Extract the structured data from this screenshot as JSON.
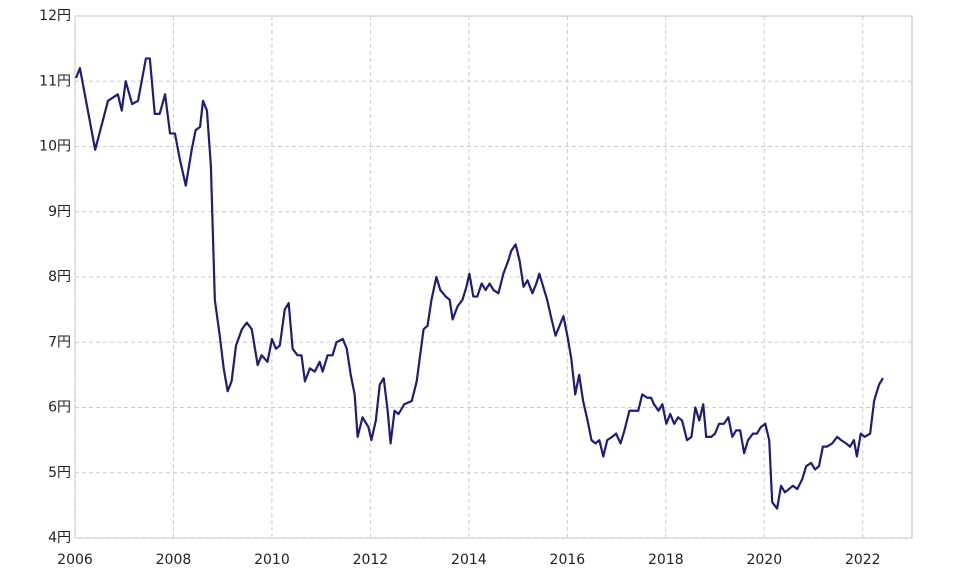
{
  "chart_data": {
    "type": "line",
    "x": [
      2006.02,
      2006.1,
      2006.41,
      2006.67,
      2006.87,
      2006.95,
      2007.03,
      2007.16,
      2007.28,
      2007.44,
      2007.52,
      2007.62,
      2007.72,
      2007.83,
      2007.93,
      2008.03,
      2008.13,
      2008.25,
      2008.37,
      2008.45,
      2008.54,
      2008.6,
      2008.68,
      2008.76,
      2008.84,
      2008.94,
      2009.02,
      2009.1,
      2009.18,
      2009.27,
      2009.39,
      2009.49,
      2009.59,
      2009.71,
      2009.79,
      2009.91,
      2010.0,
      2010.08,
      2010.16,
      2010.26,
      2010.34,
      2010.42,
      2010.52,
      2010.6,
      2010.67,
      2010.77,
      2010.87,
      2010.97,
      2011.03,
      2011.13,
      2011.23,
      2011.31,
      2011.44,
      2011.52,
      2011.6,
      2011.68,
      2011.74,
      2011.84,
      2011.96,
      2012.02,
      2012.11,
      2012.19,
      2012.27,
      2012.35,
      2012.41,
      2012.49,
      2012.57,
      2012.69,
      2012.84,
      2012.94,
      2013.08,
      2013.16,
      2013.24,
      2013.34,
      2013.42,
      2013.53,
      2013.61,
      2013.67,
      2013.77,
      2013.87,
      2013.95,
      2014.01,
      2014.09,
      2014.17,
      2014.26,
      2014.34,
      2014.42,
      2014.5,
      2014.6,
      2014.7,
      2014.8,
      2014.86,
      2014.95,
      2015.03,
      2015.11,
      2015.19,
      2015.29,
      2015.37,
      2015.43,
      2015.53,
      2015.59,
      2015.68,
      2015.76,
      2015.84,
      2015.92,
      2016.0,
      2016.08,
      2016.16,
      2016.24,
      2016.32,
      2016.41,
      2016.49,
      2016.57,
      2016.65,
      2016.73,
      2016.81,
      2016.91,
      2016.99,
      2017.08,
      2017.16,
      2017.26,
      2017.36,
      2017.44,
      2017.52,
      2017.62,
      2017.7,
      2017.76,
      2017.85,
      2017.93,
      2018.01,
      2018.09,
      2018.17,
      2018.25,
      2018.33,
      2018.43,
      2018.52,
      2018.6,
      2018.68,
      2018.76,
      2018.82,
      2018.92,
      2019.0,
      2019.08,
      2019.18,
      2019.27,
      2019.35,
      2019.43,
      2019.51,
      2019.59,
      2019.67,
      2019.77,
      2019.85,
      2019.93,
      2020.02,
      2020.1,
      2020.16,
      2020.26,
      2020.34,
      2020.42,
      2020.5,
      2020.58,
      2020.67,
      2020.77,
      2020.85,
      2020.95,
      2021.03,
      2021.11,
      2021.19,
      2021.27,
      2021.38,
      2021.48,
      2021.56,
      2021.66,
      2021.74,
      2021.82,
      2021.88,
      2021.96,
      2022.04,
      2022.15,
      2022.23,
      2022.33,
      2022.41
    ],
    "values": [
      11.05,
      11.2,
      9.95,
      10.7,
      10.8,
      10.55,
      11.0,
      10.65,
      10.7,
      11.35,
      11.35,
      10.5,
      10.5,
      10.8,
      10.2,
      10.2,
      9.8,
      9.4,
      9.95,
      10.25,
      10.3,
      10.7,
      10.55,
      9.7,
      7.65,
      7.1,
      6.6,
      6.25,
      6.4,
      6.95,
      7.2,
      7.3,
      7.2,
      6.65,
      6.8,
      6.7,
      7.05,
      6.9,
      6.95,
      7.5,
      7.6,
      6.9,
      6.8,
      6.8,
      6.4,
      6.6,
      6.55,
      6.7,
      6.55,
      6.8,
      6.8,
      7.0,
      7.05,
      6.9,
      6.5,
      6.2,
      5.55,
      5.85,
      5.7,
      5.5,
      5.8,
      6.35,
      6.45,
      5.95,
      5.45,
      5.95,
      5.9,
      6.05,
      6.1,
      6.4,
      7.2,
      7.25,
      7.65,
      8.0,
      7.8,
      7.7,
      7.65,
      7.35,
      7.55,
      7.65,
      7.85,
      8.05,
      7.7,
      7.7,
      7.9,
      7.8,
      7.9,
      7.8,
      7.75,
      8.05,
      8.25,
      8.4,
      8.5,
      8.25,
      7.85,
      7.95,
      7.75,
      7.9,
      8.05,
      7.8,
      7.65,
      7.35,
      7.1,
      7.25,
      7.4,
      7.1,
      6.75,
      6.2,
      6.5,
      6.1,
      5.8,
      5.5,
      5.45,
      5.5,
      5.25,
      5.5,
      5.55,
      5.6,
      5.45,
      5.65,
      5.95,
      5.95,
      5.95,
      6.2,
      6.15,
      6.15,
      6.05,
      5.95,
      6.05,
      5.75,
      5.9,
      5.75,
      5.85,
      5.8,
      5.5,
      5.55,
      6.0,
      5.8,
      6.05,
      5.55,
      5.55,
      5.6,
      5.75,
      5.75,
      5.85,
      5.55,
      5.65,
      5.65,
      5.3,
      5.5,
      5.6,
      5.6,
      5.7,
      5.75,
      5.5,
      4.55,
      4.45,
      4.8,
      4.7,
      4.75,
      4.8,
      4.75,
      4.9,
      5.1,
      5.15,
      5.05,
      5.1,
      5.4,
      5.4,
      5.45,
      5.55,
      5.5,
      5.45,
      5.4,
      5.5,
      5.25,
      5.6,
      5.55,
      5.6,
      6.1,
      6.35,
      6.45
    ],
    "color": "#1c1c7c",
    "xlim": [
      2006,
      2023
    ],
    "xticks": [
      2006,
      2008,
      2010,
      2012,
      2014,
      2016,
      2018,
      2020,
      2022
    ],
    "ylim": [
      4,
      12
    ],
    "yticks": [
      {
        "value": 4,
        "label": "4円"
      },
      {
        "value": 5,
        "label": "5円"
      },
      {
        "value": 6,
        "label": "6円"
      },
      {
        "value": 7,
        "label": "7円"
      },
      {
        "value": 8,
        "label": "8円"
      },
      {
        "value": 9,
        "label": "9円"
      },
      {
        "value": 10,
        "label": "10円"
      },
      {
        "value": 11,
        "label": "11円"
      },
      {
        "value": 12,
        "label": "12円"
      }
    ],
    "grid": true
  }
}
